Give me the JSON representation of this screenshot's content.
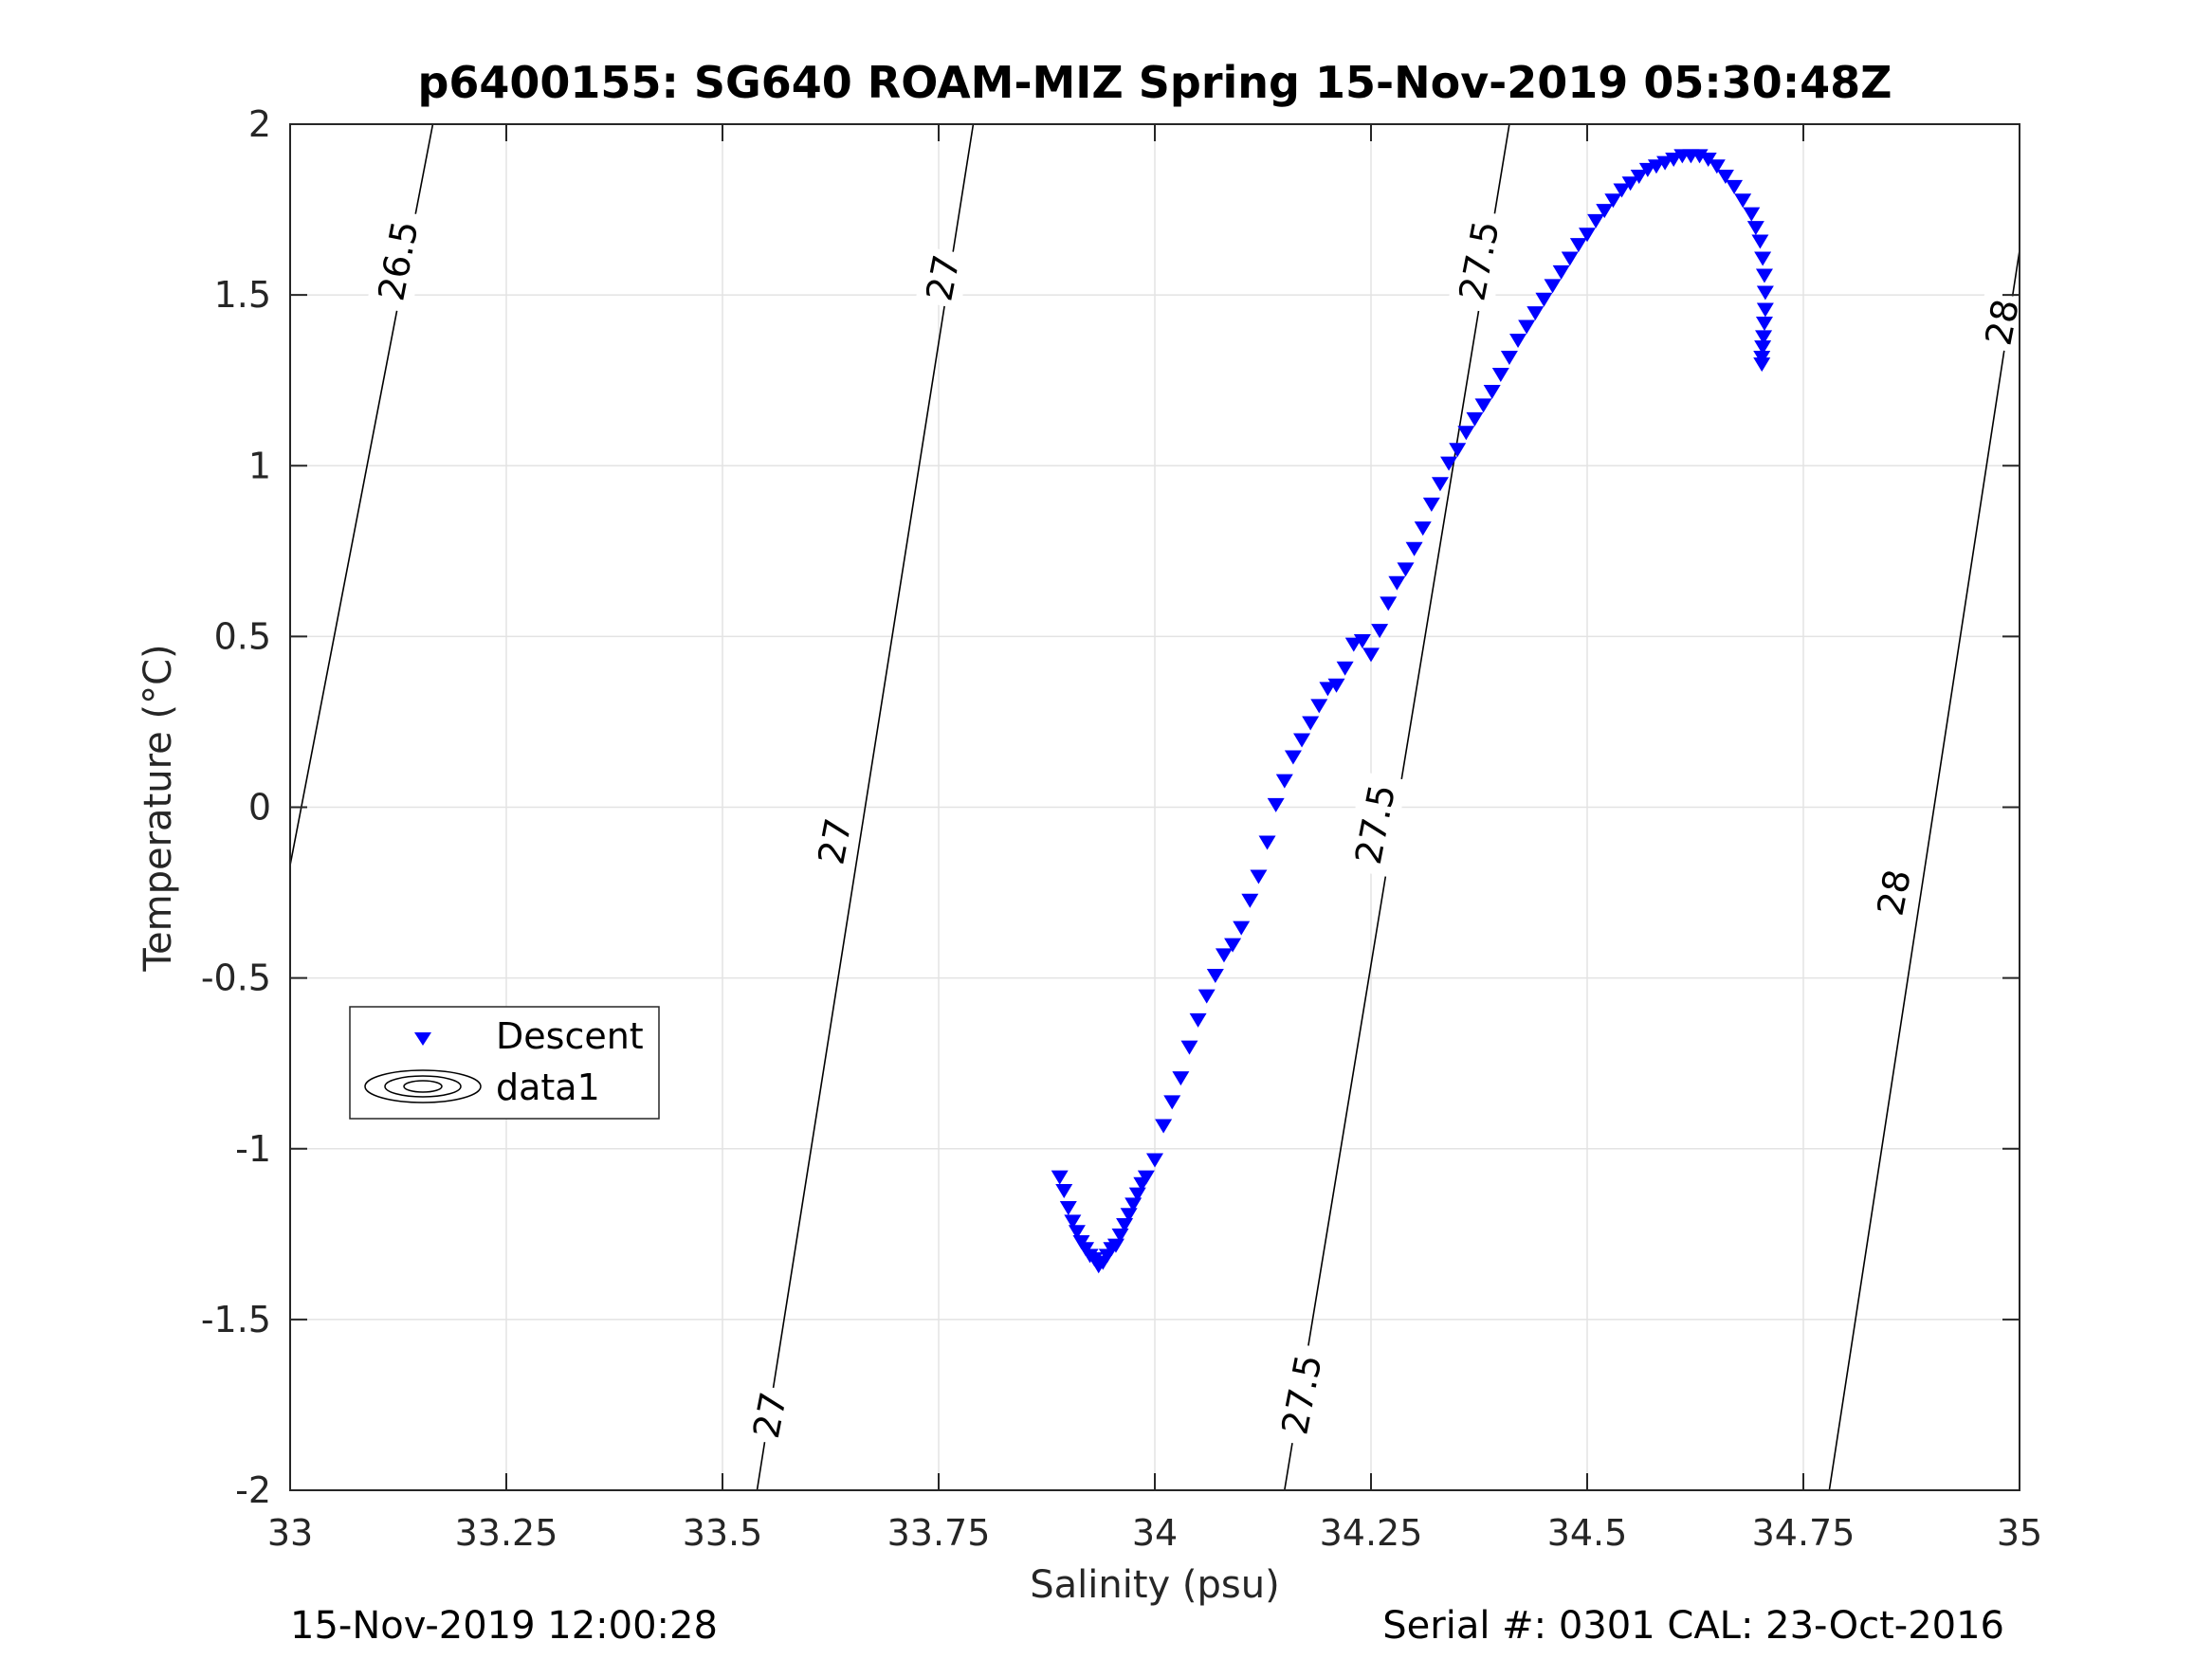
{
  "chart_data": {
    "type": "scatter",
    "title": "p6400155: SG640 ROAM-MIZ Spring 15-Nov-2019 05:30:48Z",
    "xlabel": "Salinity (psu)",
    "ylabel": "Temperature (°C)",
    "xlim": [
      33,
      35
    ],
    "ylim": [
      -2,
      2
    ],
    "grid": true,
    "legend_position": "middle-left",
    "x_ticks": [
      "33",
      "33.25",
      "33.5",
      "33.75",
      "34",
      "34.25",
      "34.5",
      "34.75",
      "35"
    ],
    "y_ticks": [
      "2",
      "1.5",
      "1",
      "0.5",
      "0",
      "-0.5",
      "-1",
      "-1.5",
      "-2"
    ],
    "x_tick_values": [
      33,
      33.25,
      33.5,
      33.75,
      34,
      34.25,
      34.5,
      34.75,
      35
    ],
    "y_tick_values": [
      2,
      1.5,
      1,
      0.5,
      0,
      -0.5,
      -1,
      -1.5,
      -2
    ],
    "series": [
      {
        "name": "Descent",
        "color": "#0000ff",
        "marker": "triangle-down",
        "x": [
          33.89,
          33.895,
          33.9,
          33.905,
          33.91,
          33.915,
          33.92,
          33.925,
          33.93,
          33.935,
          33.94,
          33.945,
          33.95,
          33.955,
          33.96,
          33.965,
          33.97,
          33.975,
          33.98,
          33.985,
          33.99,
          34.0,
          34.01,
          34.02,
          34.03,
          34.04,
          34.05,
          34.06,
          34.07,
          34.08,
          34.09,
          34.1,
          34.11,
          34.12,
          34.13,
          34.14,
          34.15,
          34.16,
          34.17,
          34.18,
          34.19,
          34.2,
          34.21,
          34.22,
          34.23,
          34.24,
          34.25,
          34.26,
          34.27,
          34.28,
          34.29,
          34.3,
          34.31,
          34.32,
          34.33,
          34.34,
          34.35,
          34.36,
          34.37,
          34.38,
          34.39,
          34.4,
          34.41,
          34.42,
          34.43,
          34.44,
          34.45,
          34.46,
          34.47,
          34.48,
          34.49,
          34.5,
          34.51,
          34.52,
          34.53,
          34.54,
          34.55,
          34.56,
          34.57,
          34.58,
          34.59,
          34.6,
          34.61,
          34.62,
          34.63,
          34.64,
          34.65,
          34.66,
          34.67,
          34.68,
          34.69,
          34.695,
          34.7,
          34.703,
          34.705,
          34.706,
          34.706,
          34.705,
          34.704,
          34.703,
          34.702,
          34.702
        ],
        "y": [
          -1.08,
          -1.12,
          -1.17,
          -1.21,
          -1.24,
          -1.27,
          -1.29,
          -1.31,
          -1.32,
          -1.34,
          -1.33,
          -1.31,
          -1.29,
          -1.28,
          -1.25,
          -1.22,
          -1.19,
          -1.16,
          -1.13,
          -1.1,
          -1.08,
          -1.03,
          -0.93,
          -0.86,
          -0.79,
          -0.7,
          -0.62,
          -0.55,
          -0.49,
          -0.43,
          -0.4,
          -0.35,
          -0.27,
          -0.2,
          -0.1,
          0.01,
          0.08,
          0.15,
          0.2,
          0.25,
          0.3,
          0.35,
          0.36,
          0.41,
          0.48,
          0.49,
          0.45,
          0.52,
          0.6,
          0.66,
          0.7,
          0.76,
          0.82,
          0.89,
          0.95,
          1.01,
          1.05,
          1.1,
          1.14,
          1.18,
          1.22,
          1.27,
          1.32,
          1.37,
          1.41,
          1.45,
          1.49,
          1.53,
          1.57,
          1.61,
          1.65,
          1.68,
          1.72,
          1.75,
          1.78,
          1.81,
          1.83,
          1.85,
          1.87,
          1.88,
          1.89,
          1.9,
          1.91,
          1.91,
          1.91,
          1.9,
          1.88,
          1.85,
          1.82,
          1.78,
          1.74,
          1.7,
          1.66,
          1.61,
          1.56,
          1.51,
          1.46,
          1.42,
          1.38,
          1.35,
          1.32,
          1.3
        ]
      },
      {
        "name": "data1",
        "type": "contour",
        "color": "#000000",
        "isopycnals": [
          {
            "level": "26.5",
            "x": [
              33.0,
              33.165
            ],
            "y": [
              -0.17,
              2.0
            ]
          },
          {
            "level": "27",
            "x": [
              33.54,
              33.79
            ],
            "y": [
              -2.0,
              2.0
            ]
          },
          {
            "level": "27.5",
            "x": [
              34.15,
              34.41
            ],
            "y": [
              -2.0,
              2.0
            ]
          },
          {
            "level": "28",
            "x": [
              34.78,
              35.0
            ],
            "y": [
              -2.0,
              1.63
            ]
          }
        ],
        "contour_labels": [
          {
            "text": "26.5",
            "x": 33.125,
            "y": 1.6
          },
          {
            "text": "27",
            "x": 33.755,
            "y": 1.55
          },
          {
            "text": "27",
            "x": 33.63,
            "y": -0.1
          },
          {
            "text": "27",
            "x": 33.555,
            "y": -1.78
          },
          {
            "text": "27.5",
            "x": 34.375,
            "y": 1.6
          },
          {
            "text": "27.5",
            "x": 34.255,
            "y": -0.05
          },
          {
            "text": "27.5",
            "x": 34.17,
            "y": -1.72
          },
          {
            "text": "28",
            "x": 34.98,
            "y": 1.42
          },
          {
            "text": "28",
            "x": 34.855,
            "y": -0.25
          }
        ]
      }
    ],
    "legend": [
      {
        "label": "Descent",
        "symbol": "triangle-down"
      },
      {
        "label": "data1",
        "symbol": "contour"
      }
    ]
  },
  "footer": {
    "left": "15-Nov-2019 12:00:28",
    "right": "Serial #: 0301  CAL: 23-Oct-2016"
  }
}
